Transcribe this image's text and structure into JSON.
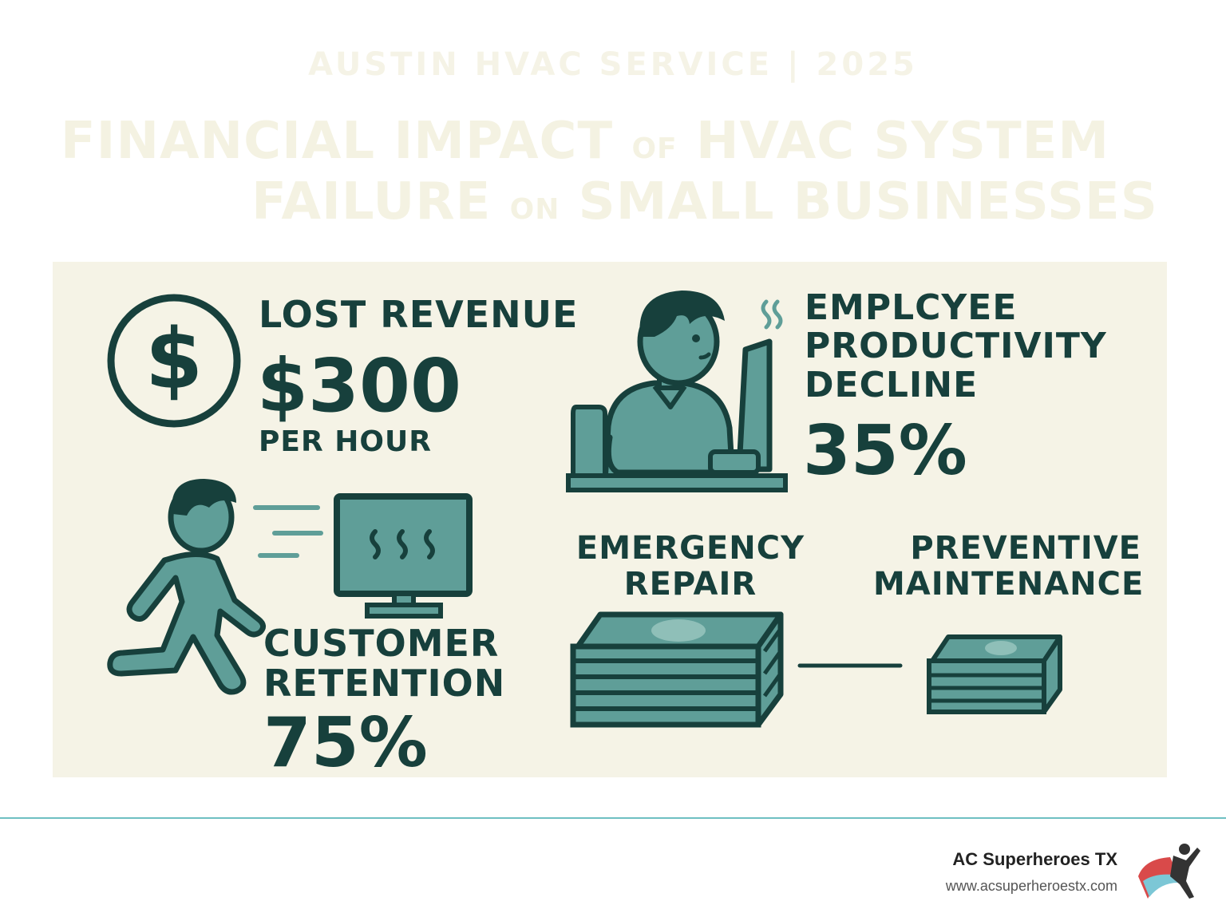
{
  "header": {
    "kicker": "AUSTIN HVAC SERVICE | 2025",
    "title_line1_a": "FINANCIAL IMPACT",
    "title_line1_small": "OF",
    "title_line1_b": "HVAC SYSTEM",
    "title_line2_a": "FAILURE",
    "title_line2_small": "ON",
    "title_line2_b": "SMALL BUSINESSES"
  },
  "lost_revenue": {
    "label": "LOST REVENUE",
    "value": "$300",
    "unit": "PER HOUR",
    "icon": "dollar-coin-icon"
  },
  "productivity": {
    "label_line1": "EMPLCYEE",
    "label_line2": "PRODUCTIVITY",
    "label_line3": "DECLINE",
    "value": "35%",
    "icon": "overheated-worker-icon"
  },
  "retention": {
    "label_line1": "CUSTOMER",
    "label_line2": "RETENTION",
    "value": "75%",
    "icon": "running-customer-icon"
  },
  "cost_comparison": {
    "emergency_line1": "EMERGENCY",
    "emergency_line2": "REPAIR",
    "preventive_line1": "PREVENTIVE",
    "preventive_line2": "MAINTENANCE",
    "icon": "money-stack-icon"
  },
  "footer": {
    "company": "AC Superheroes TX",
    "url": "www.acsuperheroestx.com",
    "logo": "superhero-logo-icon"
  },
  "colors": {
    "panel": "#f5f3e6",
    "ink": "#17403c",
    "teal": "#5f9e98",
    "teal_light": "#8fbfb8",
    "rule": "#6fc0c2"
  }
}
